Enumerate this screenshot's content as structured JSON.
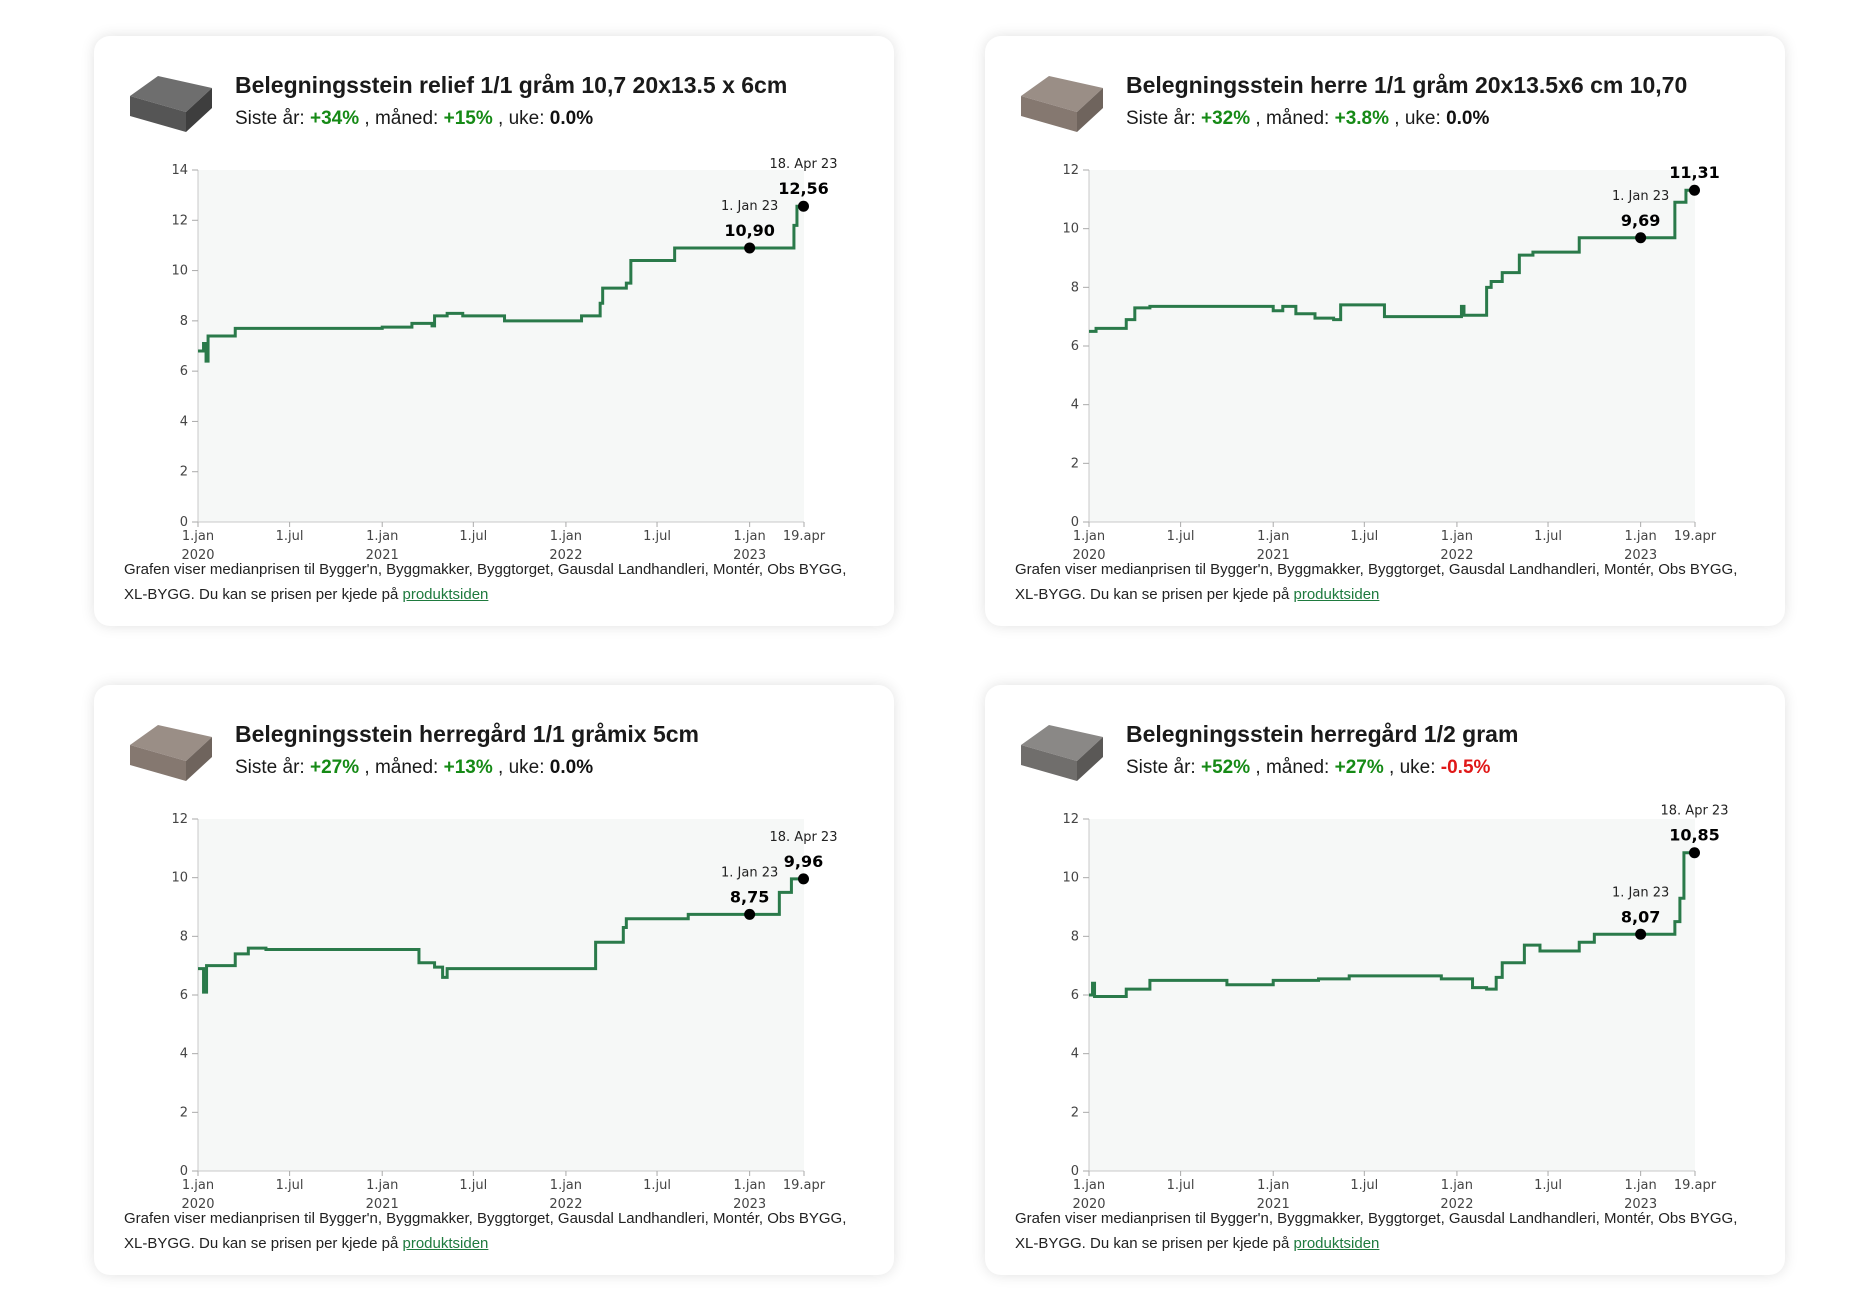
{
  "note_text": "Grafen viser medianprisen til Bygger'n, Byggmakker, Byggtorget, Gausdal Landhandleri, Montér, Obs BYGG, XL-BYGG. Du kan se prisen per kjede på",
  "note_link": "produktsiden",
  "labels": {
    "year": "Siste år:",
    "month": ", måned:",
    "week": ", uke:"
  },
  "colors": {
    "line": "#2a7a4a",
    "positive": "#168a16",
    "negative": "#e01818",
    "neutral": "#111111",
    "plot_bg": "#f6f8f7",
    "link": "#1e7a3e"
  },
  "x_ticks": [
    {
      "date": "2020-01-01",
      "label": "1.jan",
      "year": "2020"
    },
    {
      "date": "2020-07-01",
      "label": "1.jul",
      "year": ""
    },
    {
      "date": "2021-01-01",
      "label": "1.jan",
      "year": "2021"
    },
    {
      "date": "2021-07-01",
      "label": "1.jul",
      "year": ""
    },
    {
      "date": "2022-01-01",
      "label": "1.jan",
      "year": "2022"
    },
    {
      "date": "2022-07-01",
      "label": "1.jul",
      "year": ""
    },
    {
      "date": "2023-01-01",
      "label": "1.jan",
      "year": "2023"
    },
    {
      "date": "2023-04-19",
      "label": "19.apr",
      "year": ""
    }
  ],
  "products": [
    {
      "title": "Belegningsstein relief 1/1 gråm 10,7 20x13.5 x 6cm",
      "image": "dark-paving-stone",
      "stats": {
        "year": "+34%",
        "year_color": "positive",
        "month": "+15%",
        "month_color": "positive",
        "week": "0.0%",
        "week_color": "neutral"
      },
      "chart_data": {
        "type": "line",
        "step": true,
        "xlim": [
          "2020-01-01",
          "2023-04-19"
        ],
        "ylim": [
          0,
          14
        ],
        "yticks": [
          0,
          2,
          4,
          6,
          8,
          10,
          12,
          14
        ],
        "grid": false,
        "points": [
          [
            "2020-01-01",
            6.8
          ],
          [
            "2020-01-12",
            7.1
          ],
          [
            "2020-01-17",
            6.4
          ],
          [
            "2020-01-21",
            7.4
          ],
          [
            "2020-03-15",
            7.7
          ],
          [
            "2020-12-20",
            7.7
          ],
          [
            "2021-01-01",
            7.75
          ],
          [
            "2021-03-01",
            7.9
          ],
          [
            "2021-04-10",
            7.8
          ],
          [
            "2021-04-15",
            8.2
          ],
          [
            "2021-05-10",
            8.3
          ],
          [
            "2021-06-10",
            8.2
          ],
          [
            "2021-08-15",
            8.2
          ],
          [
            "2021-09-01",
            8.0
          ],
          [
            "2021-12-15",
            8.0
          ],
          [
            "2022-02-01",
            8.2
          ],
          [
            "2022-03-10",
            8.7
          ],
          [
            "2022-03-15",
            9.3
          ],
          [
            "2022-05-01",
            9.5
          ],
          [
            "2022-05-10",
            10.4
          ],
          [
            "2022-08-01",
            10.4
          ],
          [
            "2022-08-05",
            10.9
          ],
          [
            "2023-03-26",
            10.9
          ],
          [
            "2023-03-30",
            11.8
          ],
          [
            "2023-04-05",
            12.56
          ],
          [
            "2023-04-18",
            12.56
          ]
        ],
        "annotations": [
          {
            "date": "2023-01-01",
            "value": "10,90",
            "label": "1. Jan 23"
          },
          {
            "date": "2023-04-18",
            "value": "12,56",
            "label": "18. Apr 23"
          }
        ]
      }
    },
    {
      "title": "Belegningsstein herre 1/1 gråm 20x13.5x6 cm 10,70",
      "image": "beige-paving-stone",
      "stats": {
        "year": "+32%",
        "year_color": "positive",
        "month": "+3.8%",
        "month_color": "positive",
        "week": "0.0%",
        "week_color": "neutral"
      },
      "chart_data": {
        "type": "line",
        "step": true,
        "xlim": [
          "2020-01-01",
          "2023-04-19"
        ],
        "ylim": [
          0,
          12
        ],
        "yticks": [
          0,
          2,
          4,
          6,
          8,
          10,
          12
        ],
        "grid": false,
        "points": [
          [
            "2020-01-01",
            6.5
          ],
          [
            "2020-01-15",
            6.6
          ],
          [
            "2020-03-15",
            6.9
          ],
          [
            "2020-04-01",
            7.3
          ],
          [
            "2020-05-01",
            7.35
          ],
          [
            "2020-12-20",
            7.35
          ],
          [
            "2021-01-01",
            7.2
          ],
          [
            "2021-01-20",
            7.35
          ],
          [
            "2021-02-15",
            7.1
          ],
          [
            "2021-03-25",
            6.95
          ],
          [
            "2021-05-01",
            6.9
          ],
          [
            "2021-05-15",
            7.4
          ],
          [
            "2021-08-10",
            7.0
          ],
          [
            "2021-12-10",
            7.0
          ],
          [
            "2022-01-10",
            7.35
          ],
          [
            "2022-01-15",
            7.05
          ],
          [
            "2022-02-20",
            7.05
          ],
          [
            "2022-03-01",
            8.0
          ],
          [
            "2022-03-10",
            8.2
          ],
          [
            "2022-04-01",
            8.5
          ],
          [
            "2022-05-05",
            9.1
          ],
          [
            "2022-06-01",
            9.2
          ],
          [
            "2022-09-01",
            9.69
          ],
          [
            "2023-03-05",
            9.69
          ],
          [
            "2023-03-10",
            10.9
          ],
          [
            "2023-04-01",
            11.31
          ],
          [
            "2023-04-18",
            11.31
          ]
        ],
        "annotations": [
          {
            "date": "2023-01-01",
            "value": "9,69",
            "label": "1. Jan 23"
          },
          {
            "date": "2023-04-18",
            "value": "11,31",
            "label": ""
          }
        ]
      }
    },
    {
      "title": "Belegningsstein herregård 1/1 gråmix 5cm",
      "image": "beige-paving-stone",
      "stats": {
        "year": "+27%",
        "year_color": "positive",
        "month": "+13%",
        "month_color": "positive",
        "week": "0.0%",
        "week_color": "neutral"
      },
      "chart_data": {
        "type": "line",
        "step": true,
        "xlim": [
          "2020-01-01",
          "2023-04-19"
        ],
        "ylim": [
          0,
          12
        ],
        "yticks": [
          0,
          2,
          4,
          6,
          8,
          10,
          12
        ],
        "grid": false,
        "points": [
          [
            "2020-01-01",
            6.9
          ],
          [
            "2020-01-12",
            6.1
          ],
          [
            "2020-01-18",
            7.0
          ],
          [
            "2020-03-15",
            7.4
          ],
          [
            "2020-04-10",
            7.6
          ],
          [
            "2020-05-15",
            7.55
          ],
          [
            "2021-03-15",
            7.1
          ],
          [
            "2021-04-15",
            6.95
          ],
          [
            "2021-05-01",
            6.6
          ],
          [
            "2021-05-10",
            6.9
          ],
          [
            "2022-02-20",
            6.9
          ],
          [
            "2022-03-01",
            7.8
          ],
          [
            "2022-04-25",
            8.3
          ],
          [
            "2022-05-01",
            8.6
          ],
          [
            "2022-09-01",
            8.75
          ],
          [
            "2023-02-20",
            8.75
          ],
          [
            "2023-03-01",
            9.5
          ],
          [
            "2023-03-25",
            9.96
          ],
          [
            "2023-04-18",
            9.96
          ]
        ],
        "annotations": [
          {
            "date": "2023-01-01",
            "value": "8,75",
            "label": "1. Jan 23"
          },
          {
            "date": "2023-04-18",
            "value": "9,96",
            "label": "18. Apr 23"
          }
        ]
      }
    },
    {
      "title": "Belegningsstein herregård 1/2 gram",
      "image": "grey-paving-stone",
      "stats": {
        "year": "+52%",
        "year_color": "positive",
        "month": "+27%",
        "month_color": "positive",
        "week": "-0.5%",
        "week_color": "negative"
      },
      "chart_data": {
        "type": "line",
        "step": true,
        "xlim": [
          "2020-01-01",
          "2023-04-19"
        ],
        "ylim": [
          0,
          12
        ],
        "yticks": [
          0,
          2,
          4,
          6,
          8,
          10,
          12
        ],
        "grid": false,
        "points": [
          [
            "2020-01-01",
            6.0
          ],
          [
            "2020-01-08",
            6.4
          ],
          [
            "2020-01-12",
            5.95
          ],
          [
            "2020-03-15",
            6.2
          ],
          [
            "2020-05-01",
            6.5
          ],
          [
            "2020-10-01",
            6.35
          ],
          [
            "2021-01-01",
            6.5
          ],
          [
            "2021-04-01",
            6.55
          ],
          [
            "2021-06-01",
            6.65
          ],
          [
            "2021-12-01",
            6.55
          ],
          [
            "2022-02-01",
            6.25
          ],
          [
            "2022-03-01",
            6.2
          ],
          [
            "2022-03-20",
            6.6
          ],
          [
            "2022-04-01",
            7.1
          ],
          [
            "2022-05-15",
            7.7
          ],
          [
            "2022-06-15",
            7.5
          ],
          [
            "2022-09-01",
            7.8
          ],
          [
            "2022-10-01",
            8.07
          ],
          [
            "2023-03-05",
            8.07
          ],
          [
            "2023-03-10",
            8.5
          ],
          [
            "2023-03-20",
            9.3
          ],
          [
            "2023-03-28",
            10.85
          ],
          [
            "2023-04-18",
            10.85
          ]
        ],
        "annotations": [
          {
            "date": "2023-01-01",
            "value": "8,07",
            "label": "1. Jan 23"
          },
          {
            "date": "2023-04-18",
            "value": "10,85",
            "label": "18. Apr 23"
          }
        ]
      }
    }
  ]
}
